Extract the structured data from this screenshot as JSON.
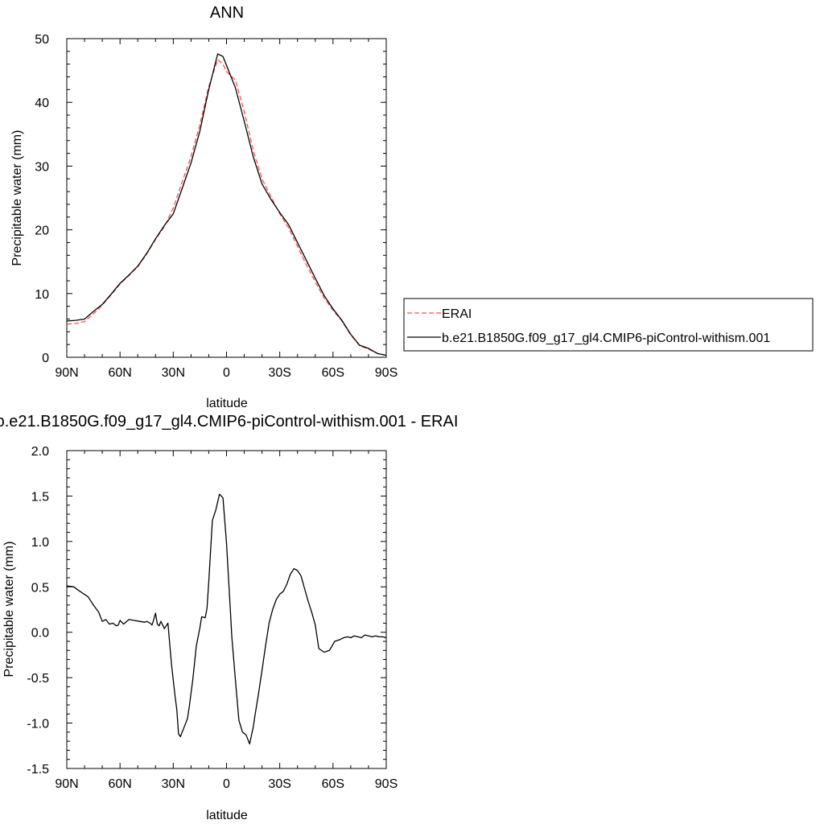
{
  "colors": {
    "erai": "#ff4d4d",
    "model": "#000000"
  },
  "legend": {
    "placement": "right of top panel",
    "entries": [
      {
        "label": "ERAI",
        "style": "dashed",
        "color": "#ff4d4d"
      },
      {
        "label": "b.e21.B1850G.f09_g17_gl4.CMIP6-piControl-withism.001",
        "style": "solid",
        "color": "#000000"
      }
    ]
  },
  "chart_data": [
    {
      "type": "line",
      "title": "ANN",
      "xlabel": "latitude",
      "ylabel": "Precipitable water (mm)",
      "xlim": [
        90,
        -90
      ],
      "ylim": [
        0,
        50
      ],
      "x_tick_values": [
        90,
        60,
        30,
        0,
        -30,
        -60,
        -90
      ],
      "x_tick_labels": [
        "90N",
        "60N",
        "30N",
        "0",
        "30S",
        "60S",
        "90S"
      ],
      "y_tick_values": [
        0,
        10,
        20,
        30,
        40,
        50
      ],
      "y_tick_labels": [
        "0",
        "10",
        "20",
        "30",
        "40",
        "50"
      ],
      "grid": false,
      "series": [
        {
          "name": "ERAI",
          "style": "dashed",
          "x": [
            90,
            85,
            80,
            75,
            70,
            65,
            60,
            55,
            50,
            45,
            40,
            35,
            30,
            25,
            20,
            15,
            10,
            5,
            2,
            0,
            -5,
            -10,
            -15,
            -20,
            -25,
            -30,
            -35,
            -40,
            -45,
            -50,
            -55,
            -60,
            -65,
            -70,
            -75,
            -80,
            -85,
            -90
          ],
          "y": [
            5.2,
            5.3,
            5.6,
            6.8,
            8.2,
            9.8,
            11.5,
            12.8,
            14.2,
            16.2,
            18.5,
            20.5,
            23.4,
            27.5,
            31.5,
            36.5,
            42.5,
            46.7,
            46.0,
            44.8,
            43.5,
            38.5,
            32.5,
            28.0,
            25.2,
            22.5,
            20.3,
            17.4,
            14.5,
            11.8,
            9.3,
            7.4,
            5.7,
            3.5,
            1.8,
            1.3,
            0.6,
            0.3
          ]
        },
        {
          "name": "b.e21.B1850G.f09_g17_gl4.CMIP6-piControl-withism.001",
          "style": "solid",
          "x": [
            90,
            85,
            80,
            75,
            70,
            65,
            60,
            55,
            50,
            45,
            40,
            35,
            30,
            25,
            20,
            15,
            10,
            5,
            2,
            0,
            -5,
            -10,
            -15,
            -20,
            -25,
            -30,
            -35,
            -40,
            -45,
            -50,
            -55,
            -60,
            -65,
            -70,
            -75,
            -80,
            -85,
            -90
          ],
          "y": [
            5.7,
            5.8,
            6.0,
            7.2,
            8.3,
            9.9,
            11.6,
            12.9,
            14.3,
            16.3,
            18.6,
            20.7,
            22.5,
            26.5,
            30.5,
            35.5,
            42.0,
            47.6,
            47.2,
            45.8,
            42.3,
            37.0,
            31.5,
            27.2,
            24.8,
            22.7,
            20.8,
            18.0,
            15.2,
            12.4,
            9.7,
            7.6,
            5.8,
            3.6,
            1.9,
            1.4,
            0.6,
            0.3
          ]
        }
      ]
    },
    {
      "type": "line",
      "title": "b.e21.B1850G.f09_g17_gl4.CMIP6-piControl-withism.001 - ERAI",
      "xlabel": "latitude",
      "ylabel": "Precipitable water (mm)",
      "xlim": [
        90,
        -90
      ],
      "ylim": [
        -1.5,
        2.0
      ],
      "x_tick_values": [
        90,
        60,
        30,
        0,
        -30,
        -60,
        -90
      ],
      "x_tick_labels": [
        "90N",
        "60N",
        "30N",
        "0",
        "30S",
        "60S",
        "90S"
      ],
      "y_tick_values": [
        -1.5,
        -1.0,
        -0.5,
        0.0,
        0.5,
        1.0,
        1.5,
        2.0
      ],
      "y_tick_labels": [
        "-1.5",
        "-1.0",
        "-0.5",
        "0.0",
        "0.5",
        "1.0",
        "1.5",
        "2.0"
      ],
      "grid": false,
      "series": [
        {
          "x": [
            90,
            86,
            84,
            81,
            78,
            75,
            72,
            70,
            68,
            66,
            64,
            62,
            61,
            60,
            58,
            55,
            52,
            49,
            46,
            45,
            43,
            42,
            41,
            40,
            39,
            38,
            37,
            35,
            33,
            31,
            29,
            28,
            27,
            26,
            24,
            22,
            21,
            19,
            17,
            15,
            14,
            12,
            11,
            10,
            8,
            6,
            4,
            2,
            0,
            -2,
            -3,
            -5,
            -7,
            -9,
            -11,
            -13,
            -15,
            -16,
            -17,
            -18,
            -20,
            -22,
            -24,
            -26,
            -28,
            -30,
            -32,
            -34,
            -36,
            -38,
            -40,
            -42,
            -44,
            -46,
            -48,
            -50,
            -52,
            -55,
            -58,
            -61,
            -64,
            -66,
            -68,
            -70,
            -72,
            -74,
            -76,
            -78,
            -80,
            -82,
            -84,
            -86,
            -88,
            -90
          ],
          "y": [
            0.51,
            0.5,
            0.47,
            0.43,
            0.39,
            0.3,
            0.22,
            0.12,
            0.14,
            0.09,
            0.1,
            0.07,
            0.08,
            0.13,
            0.09,
            0.14,
            0.13,
            0.12,
            0.11,
            0.12,
            0.1,
            0.08,
            0.14,
            0.21,
            0.09,
            0.07,
            0.12,
            0.04,
            0.1,
            -0.35,
            -0.7,
            -0.85,
            -1.12,
            -1.15,
            -1.05,
            -0.95,
            -0.82,
            -0.52,
            -0.15,
            0.05,
            0.17,
            0.16,
            0.26,
            0.55,
            1.23,
            1.35,
            1.52,
            1.48,
            0.98,
            0.3,
            -0.05,
            -0.52,
            -0.97,
            -1.1,
            -1.13,
            -1.23,
            -1.05,
            -0.92,
            -0.8,
            -0.68,
            -0.42,
            -0.15,
            0.1,
            0.25,
            0.36,
            0.42,
            0.45,
            0.53,
            0.64,
            0.7,
            0.68,
            0.62,
            0.48,
            0.34,
            0.22,
            0.08,
            -0.18,
            -0.22,
            -0.2,
            -0.1,
            -0.08,
            -0.06,
            -0.05,
            -0.06,
            -0.04,
            -0.05,
            -0.06,
            -0.03,
            -0.04,
            -0.05,
            -0.04,
            -0.05,
            -0.05,
            -0.06
          ]
        }
      ]
    }
  ]
}
